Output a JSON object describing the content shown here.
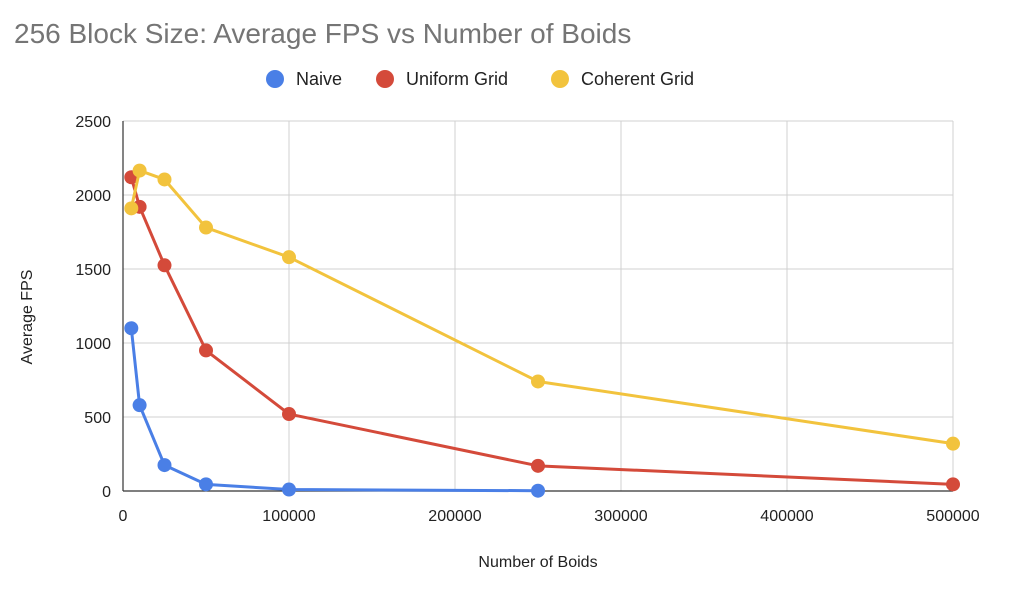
{
  "chart_data": {
    "type": "line",
    "title": "256 Block Size: Average FPS vs Number of Boids",
    "xlabel": "Number of Boids",
    "ylabel": "Average FPS",
    "xlim": [
      0,
      500000
    ],
    "ylim": [
      0,
      2500
    ],
    "xticks": [
      0,
      100000,
      200000,
      300000,
      400000,
      500000
    ],
    "yticks": [
      0,
      500,
      1000,
      1500,
      2000,
      2500
    ],
    "x_tick_labels": [
      "0",
      "100000",
      "200000",
      "300000",
      "400000",
      "500000"
    ],
    "y_tick_labels": [
      "0",
      "500",
      "1000",
      "1500",
      "2000",
      "2500"
    ],
    "grid": true,
    "legend_position": "top",
    "series": [
      {
        "name": "Naive",
        "color": "#4a7fe6",
        "x": [
          5000,
          10000,
          25000,
          50000,
          100000,
          250000
        ],
        "y": [
          1100,
          580,
          175,
          45,
          10,
          2
        ]
      },
      {
        "name": "Uniform Grid",
        "color": "#d44a3a",
        "x": [
          5000,
          10000,
          25000,
          50000,
          100000,
          250000,
          500000
        ],
        "y": [
          2120,
          1920,
          1525,
          950,
          520,
          170,
          45
        ]
      },
      {
        "name": "Coherent Grid",
        "color": "#f2c33d",
        "x": [
          5000,
          10000,
          25000,
          50000,
          100000,
          250000,
          500000
        ],
        "y": [
          1910,
          2165,
          2105,
          1780,
          1580,
          740,
          320
        ]
      }
    ]
  }
}
